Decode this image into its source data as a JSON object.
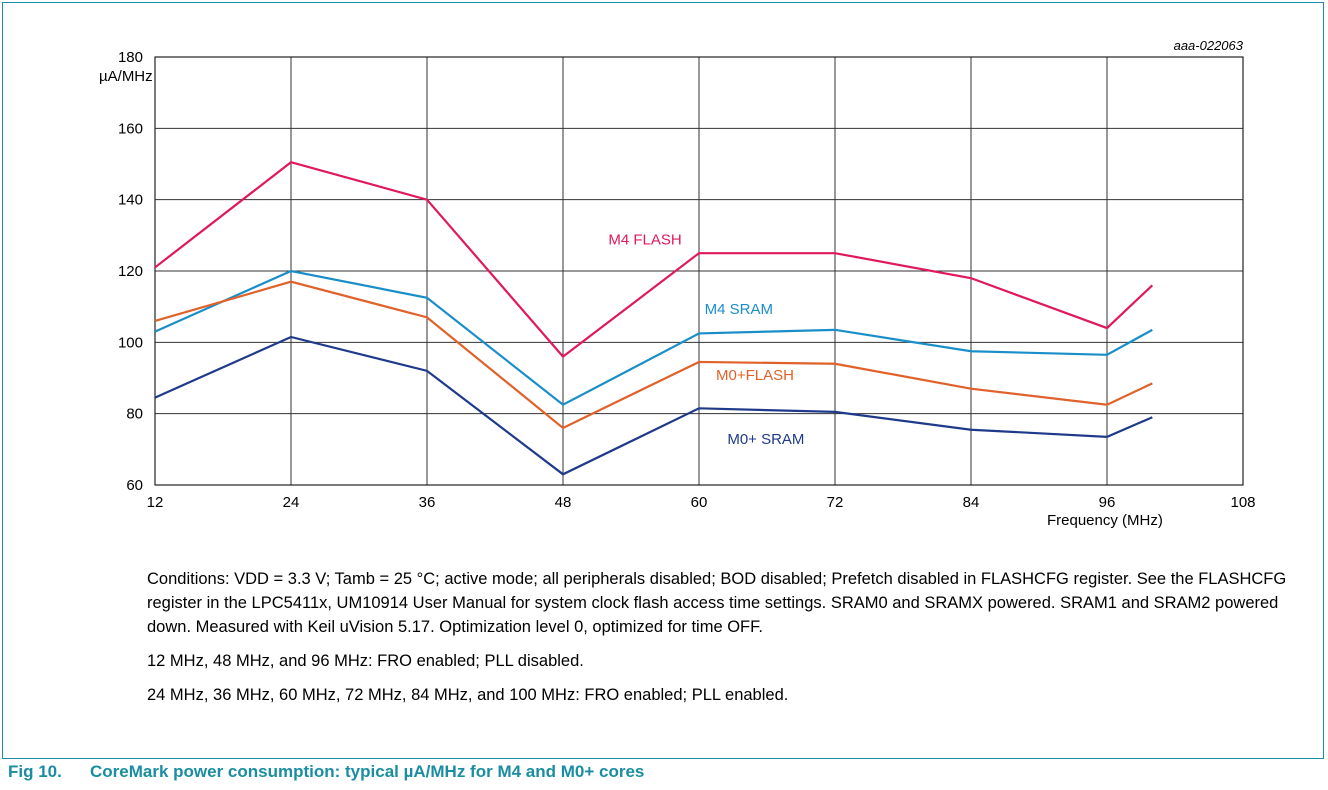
{
  "chart_data": {
    "type": "line",
    "id_label": "aaa-022063",
    "ylabel": "µA/MHz",
    "xlabel": "Frequency (MHz)",
    "xlim": [
      12,
      108
    ],
    "ylim": [
      60,
      180
    ],
    "x_ticks": [
      12,
      24,
      36,
      48,
      60,
      72,
      84,
      96,
      108
    ],
    "y_ticks": [
      60,
      80,
      100,
      120,
      140,
      160,
      180
    ],
    "grid": true,
    "x": [
      12,
      24,
      36,
      48,
      60,
      72,
      84,
      96,
      100
    ],
    "series": [
      {
        "name": "M4 FLASH",
        "color": "#e0195a",
        "values": [
          121,
          150.5,
          140,
          96,
          125,
          125,
          118,
          104,
          116
        ]
      },
      {
        "name": "M4 SRAM",
        "color": "#1a8ec8",
        "values": [
          103,
          120,
          112.5,
          82.5,
          102.5,
          103.5,
          97.5,
          96.5,
          103.5
        ]
      },
      {
        "name": "M0+FLASH",
        "color": "#e0622a",
        "values": [
          106,
          117,
          107,
          76,
          94.5,
          94,
          87,
          82.5,
          88.5
        ]
      },
      {
        "name": "M0+ SRAM",
        "color": "#1f3a8a",
        "values": [
          84.5,
          101.5,
          92,
          63,
          81.5,
          80.5,
          75.5,
          73.5,
          79
        ]
      }
    ]
  },
  "notes": {
    "conditions": "Conditions: VDD = 3.3 V; Tamb = 25 °C; active mode; all peripherals disabled; BOD disabled; Prefetch disabled in FLASHCFG register. See the FLASHCFG register in the LPC5411x, UM10914 User Manual for system clock flash access time settings. SRAM0 and SRAMX powered. SRAM1 and SRAM2 powered down. Measured with Keil uVision 5.17. Optimization level 0, optimized for time OFF.",
    "pll_disabled": "12 MHz, 48 MHz, and 96 MHz: FRO enabled; PLL disabled.",
    "pll_enabled": "24 MHz, 36 MHz, 60 MHz, 72 MHz, 84 MHz, and 100 MHz: FRO enabled; PLL enabled."
  },
  "caption": {
    "number": "Fig 10.",
    "title": "CoreMark power consumption: typical µA/MHz for M4 and M0+ cores"
  }
}
